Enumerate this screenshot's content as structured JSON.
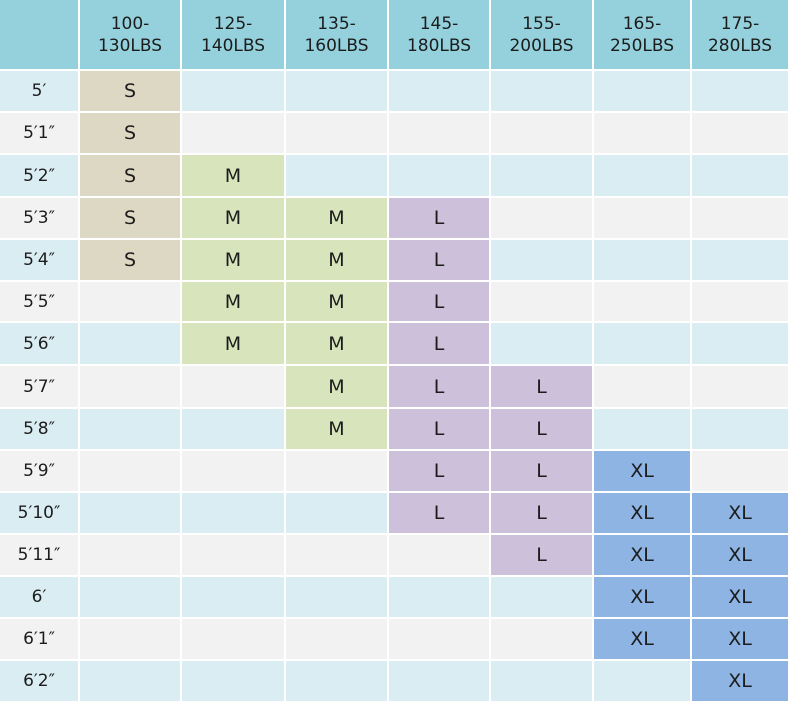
{
  "chart_data": {
    "type": "table",
    "columns": [
      "100-130LBS",
      "125-140LBS",
      "135-160LBS",
      "145-180LBS",
      "155-200LBS",
      "165-250LBS",
      "175-280LBS"
    ],
    "column_lines": [
      [
        "100-",
        "130LBS"
      ],
      [
        "125-",
        "140LBS"
      ],
      [
        "135-",
        "160LBS"
      ],
      [
        "145-",
        "180LBS"
      ],
      [
        "155-",
        "200LBS"
      ],
      [
        "165-",
        "250LBS"
      ],
      [
        "175-",
        "280LBS"
      ]
    ],
    "rows": [
      {
        "height": "5′",
        "cells": [
          "S",
          "",
          "",
          "",
          "",
          "",
          ""
        ]
      },
      {
        "height": "5′1″",
        "cells": [
          "S",
          "",
          "",
          "",
          "",
          "",
          ""
        ]
      },
      {
        "height": "5′2″",
        "cells": [
          "S",
          "M",
          "",
          "",
          "",
          "",
          ""
        ]
      },
      {
        "height": "5′3″",
        "cells": [
          "S",
          "M",
          "M",
          "L",
          "",
          "",
          ""
        ]
      },
      {
        "height": "5′4″",
        "cells": [
          "S",
          "M",
          "M",
          "L",
          "",
          "",
          ""
        ]
      },
      {
        "height": "5′5″",
        "cells": [
          "",
          "M",
          "M",
          "L",
          "",
          "",
          ""
        ]
      },
      {
        "height": "5′6″",
        "cells": [
          "",
          "M",
          "M",
          "L",
          "",
          "",
          ""
        ]
      },
      {
        "height": "5′7″",
        "cells": [
          "",
          "",
          "M",
          "L",
          "L",
          "",
          ""
        ]
      },
      {
        "height": "5′8″",
        "cells": [
          "",
          "",
          "M",
          "L",
          "L",
          "",
          ""
        ]
      },
      {
        "height": "5′9″",
        "cells": [
          "",
          "",
          "",
          "L",
          "L",
          "XL",
          ""
        ]
      },
      {
        "height": "5′10″",
        "cells": [
          "",
          "",
          "",
          "L",
          "L",
          "XL",
          "XL"
        ]
      },
      {
        "height": "5′11″",
        "cells": [
          "",
          "",
          "",
          "",
          "L",
          "XL",
          "XL"
        ]
      },
      {
        "height": "6′",
        "cells": [
          "",
          "",
          "",
          "",
          "",
          "XL",
          "XL"
        ]
      },
      {
        "height": "6′1″",
        "cells": [
          "",
          "",
          "",
          "",
          "",
          "XL",
          "XL"
        ]
      },
      {
        "height": "6′2″",
        "cells": [
          "",
          "",
          "",
          "",
          "",
          "",
          "XL"
        ]
      }
    ]
  },
  "colors": {
    "header": "#94d1dc",
    "row_even": "#daedf3",
    "row_odd": "#f2f2f2",
    "size_S": "#ddd8c4",
    "size_M": "#d8e4bc",
    "size_L": "#ccc0da",
    "size_XL": "#8db4e2",
    "text": "#1c1c1c"
  }
}
